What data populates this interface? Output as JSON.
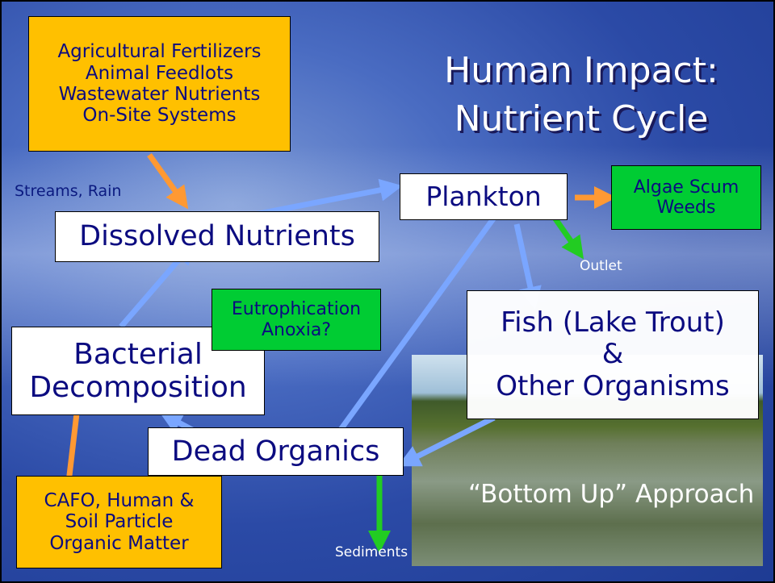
{
  "title": {
    "lines": [
      "Human Impact:",
      "Nutrient Cycle"
    ]
  },
  "nodes": [
    {
      "label": [
        "Agricultural Fertilizers",
        "Animal Feedlots",
        "Wastewater Nutrients",
        "On-Site Systems"
      ]
    },
    {
      "label": [
        "Dissolved Nutrients"
      ]
    },
    {
      "label": [
        "Plankton"
      ]
    },
    {
      "label": [
        "Algae Scum",
        "Weeds"
      ]
    },
    {
      "label": [
        "Eutrophication",
        "Anoxia?"
      ]
    },
    {
      "label": [
        "Bacterial",
        "Decomposition"
      ]
    },
    {
      "label": [
        "Fish (Lake Trout)",
        "&",
        "Other Organisms"
      ]
    },
    {
      "label": [
        "Dead Organics"
      ]
    },
    {
      "label": [
        "CAFO, Human &",
        "Soil Particle",
        "Organic Matter"
      ]
    }
  ],
  "labels": {
    "streams": "Streams, Rain",
    "outlet": "Outlet",
    "sediments": "Sediments",
    "caption": "“Bottom Up” Approach"
  }
}
